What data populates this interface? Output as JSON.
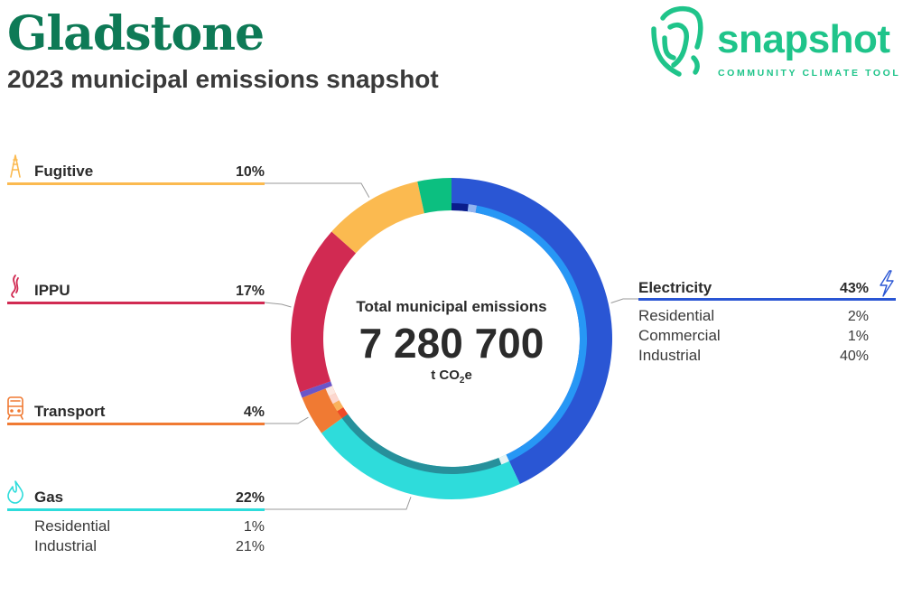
{
  "header": {
    "title": "Gladstone",
    "subtitle": "2023 municipal emissions snapshot"
  },
  "brand": {
    "name": "snapshot",
    "tagline": "COMMUNITY CLIMATE TOOL",
    "logo_icon": "fingerprint-icon",
    "color": "#1fc48a"
  },
  "chart_data": {
    "type": "donut",
    "center": {
      "label": "Total municipal emissions",
      "total": "7 280 700",
      "unit_main": "t CO",
      "unit_sub": "2",
      "unit_end": "e"
    },
    "categories": [
      {
        "name": "Electricity",
        "percent_label": "43%",
        "value": 43,
        "color": "#2a56d4",
        "icon": "lightning-icon",
        "subsectors": [
          {
            "name": "Residential",
            "percent_label": "2%",
            "value": 2,
            "color": "#0a1d8c"
          },
          {
            "name": "Commercial",
            "percent_label": "1%",
            "value": 1,
            "color": "#93b4f0"
          },
          {
            "name": "Industrial",
            "percent_label": "40%",
            "value": 40,
            "color": "#2797f5"
          }
        ]
      },
      {
        "name": "Gas",
        "percent_label": "22%",
        "value": 22,
        "color": "#2edcdb",
        "icon": "flame-icon",
        "subsectors": [
          {
            "name": "Residential",
            "percent_label": "1%",
            "value": 1,
            "color": "#e8f4f4"
          },
          {
            "name": "Industrial",
            "percent_label": "21%",
            "value": 21,
            "color": "#27909b"
          }
        ]
      },
      {
        "name": "Transport",
        "percent_label": "4%",
        "value": 4,
        "color": "#f07a33",
        "icon": "train-icon",
        "subsectors": [
          {
            "name": "",
            "value": 1,
            "color": "#ee4a28"
          },
          {
            "name": "",
            "value": 1,
            "color": "#f9b25c"
          },
          {
            "name": "",
            "value": 1,
            "color": "#fcd7cf"
          },
          {
            "name": "",
            "value": 1,
            "color": "#fde9e2"
          }
        ]
      },
      {
        "name": "",
        "value": 0.6,
        "color": "#6a56c9",
        "icon": "",
        "subsectors": []
      },
      {
        "name": "IPPU",
        "percent_label": "17%",
        "value": 17,
        "color": "#d12a52",
        "icon": "smoke-icon",
        "subsectors": []
      },
      {
        "name": "Fugitive",
        "percent_label": "10%",
        "value": 10,
        "color": "#fbba50",
        "icon": "oil-well-icon",
        "subsectors": []
      },
      {
        "name": "",
        "value": 3.4,
        "color": "#0cbf80",
        "icon": "",
        "subsectors": []
      }
    ]
  }
}
